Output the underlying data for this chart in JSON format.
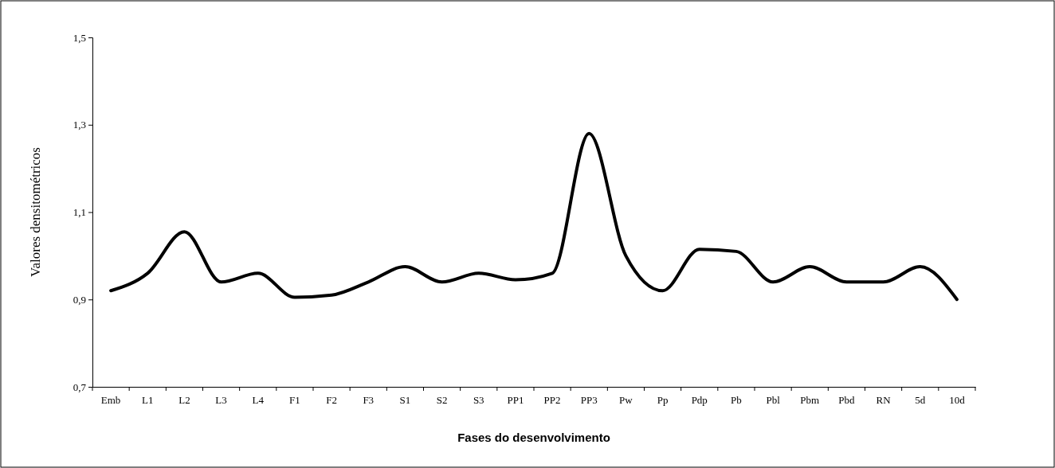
{
  "chart_data": {
    "type": "line",
    "xlabel": "Fases do desenvolvimento",
    "ylabel": "Valores densitométricos",
    "categories": [
      "Emb",
      "L1",
      "L2",
      "L3",
      "L4",
      "F1",
      "F2",
      "F3",
      "S1",
      "S2",
      "S3",
      "PP1",
      "PP2",
      "PP3",
      "Pw",
      "Pp",
      "Pdp",
      "Pb",
      "Pbl",
      "Pbm",
      "Pbd",
      "RN",
      "5d",
      "10d"
    ],
    "series": [
      {
        "color": "#000000",
        "values": [
          0.92,
          0.96,
          1.055,
          0.94,
          0.96,
          0.905,
          0.91,
          0.94,
          0.975,
          0.94,
          0.96,
          0.945,
          0.96,
          1.28,
          1.0,
          0.92,
          1.015,
          1.01,
          0.94,
          0.975,
          0.94,
          0.94,
          0.975,
          0.9
        ]
      }
    ],
    "ylim": [
      0.7,
      1.5
    ],
    "yticks": [
      {
        "value": 0.7,
        "label": "0,7"
      },
      {
        "value": 0.9,
        "label": "0,9"
      },
      {
        "value": 1.1,
        "label": "1,1"
      },
      {
        "value": 1.3,
        "label": "1,3"
      },
      {
        "value": 1.5,
        "label": "1,5"
      }
    ],
    "grid": false,
    "marker": "none",
    "line_style": "solid"
  }
}
